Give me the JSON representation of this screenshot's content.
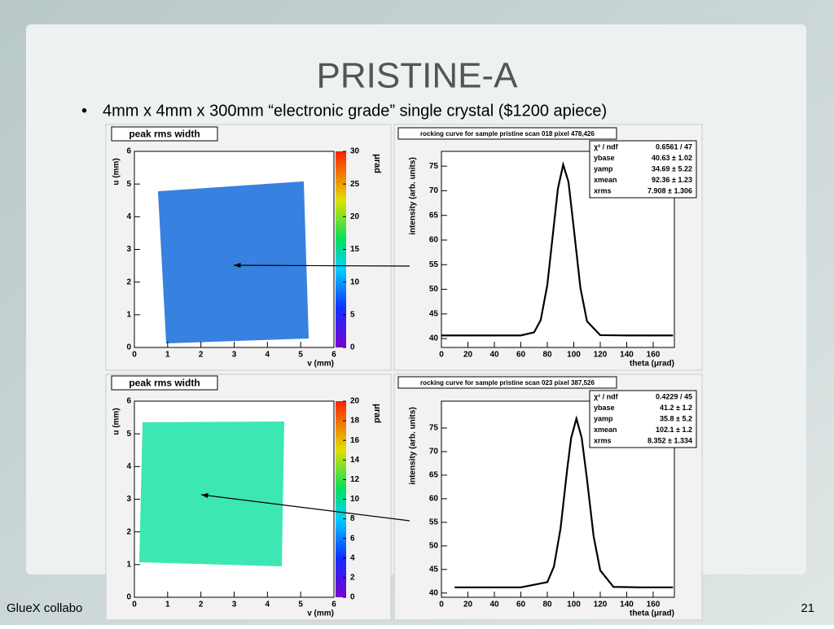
{
  "title": "PRISTINE-A",
  "bullet": "4mm x 4mm x 300mm “electronic grade” single crystal ($1200 apiece)",
  "footer": "GlueX collabo",
  "page_number": "21",
  "chart_data": [
    {
      "type": "heatmap",
      "title": "peak rms width",
      "xlabel": "v (mm)",
      "ylabel": "u (mm)",
      "zlabel": "μrad",
      "xlim": [
        0,
        6
      ],
      "xticks": [
        0,
        1,
        2,
        3,
        4,
        5,
        6
      ],
      "ylim": [
        0,
        6
      ],
      "yticks": [
        0,
        1,
        2,
        3,
        4,
        5,
        6
      ],
      "zlim": [
        0,
        30
      ],
      "zticks": [
        0,
        5,
        10,
        15,
        20,
        25,
        30
      ],
      "color": "#2d7be0"
    },
    {
      "type": "line",
      "title": "rocking curve for sample pristine scan 018 pixel 478,426",
      "xlabel": "theta (μrad)",
      "ylabel": "intensity (arb. units)",
      "xlim": [
        0,
        176
      ],
      "xticks": [
        0,
        20,
        40,
        60,
        80,
        100,
        120,
        140,
        160
      ],
      "ylim": [
        38.2,
        78
      ],
      "yticks": [
        40,
        45,
        50,
        55,
        60,
        65,
        70,
        75
      ],
      "x": [
        0,
        40,
        60,
        70,
        75,
        80,
        85,
        88,
        92,
        96,
        100,
        105,
        110,
        120,
        140,
        175
      ],
      "values": [
        40.63,
        40.63,
        40.64,
        41.26,
        43.75,
        50.87,
        63.12,
        70.43,
        75.3,
        71.8,
        62.4,
        50.3,
        43.5,
        40.7,
        40.63,
        40.63
      ],
      "color": "#000000",
      "stats": [
        {
          "name": "χ² / ndf",
          "value": "0.6561 / 47"
        },
        {
          "name": "ybase",
          "value": "40.63 ± 1.02"
        },
        {
          "name": "yamp",
          "value": "34.69 ± 5.22"
        },
        {
          "name": "xmean",
          "value": "92.36 ± 1.23"
        },
        {
          "name": "xrms",
          "value": "7.908 ± 1.306"
        }
      ]
    },
    {
      "type": "heatmap",
      "title": "peak rms width",
      "xlabel": "v (mm)",
      "ylabel": "u (mm)",
      "zlabel": "μrad",
      "xlim": [
        0,
        6
      ],
      "xticks": [
        0,
        1,
        2,
        3,
        4,
        5,
        6
      ],
      "ylim": [
        0,
        6
      ],
      "yticks": [
        0,
        1,
        2,
        3,
        4,
        5,
        6
      ],
      "zlim": [
        0,
        20
      ],
      "zticks": [
        0,
        2,
        4,
        6,
        8,
        10,
        12,
        14,
        16,
        18,
        20
      ],
      "color": "#33e6b0"
    },
    {
      "type": "line",
      "title": "rocking curve for sample pristine scan 023 pixel 387,526",
      "xlabel": "theta (μrad)",
      "ylabel": "intensity (arb. units)",
      "xlim": [
        0,
        176
      ],
      "xticks": [
        0,
        20,
        40,
        60,
        80,
        100,
        120,
        140,
        160
      ],
      "ylim": [
        39.1,
        80.7
      ],
      "yticks": [
        40,
        45,
        50,
        55,
        60,
        65,
        70,
        75
      ],
      "x": [
        10,
        60,
        80,
        85,
        90,
        95,
        98,
        102,
        106,
        110,
        115,
        120,
        130,
        150,
        175
      ],
      "values": [
        41.2,
        41.2,
        42.3,
        45.6,
        53.7,
        66.2,
        72.9,
        77.0,
        72.9,
        64.1,
        52.0,
        44.8,
        41.3,
        41.2,
        41.2
      ],
      "color": "#000000",
      "stats": [
        {
          "name": "χ² / ndf",
          "value": "0.4229 / 45"
        },
        {
          "name": "ybase",
          "value": "41.2 ± 1.2"
        },
        {
          "name": "yamp",
          "value": "35.8 ± 5.2"
        },
        {
          "name": "xmean",
          "value": "102.1 ± 1.2"
        },
        {
          "name": "xrms",
          "value": "8.352 ± 1.334"
        }
      ]
    }
  ]
}
